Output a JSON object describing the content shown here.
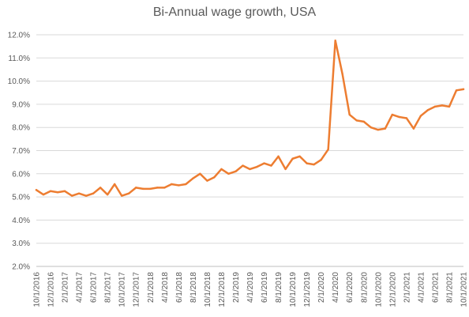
{
  "chart_data": {
    "type": "line",
    "title": "Bi-Annual wage growth, USA",
    "xlabel": "",
    "ylabel": "",
    "ylim": [
      2.0,
      12.0
    ],
    "y_tick_step": 1.0,
    "y_tick_labels": [
      "2.0%",
      "3.0%",
      "4.0%",
      "5.0%",
      "6.0%",
      "7.0%",
      "8.0%",
      "9.0%",
      "10.0%",
      "11.0%",
      "12.0%"
    ],
    "x_tick_labels": [
      "10/1/2016",
      "12/1/2016",
      "2/1/2017",
      "4/1/2017",
      "6/1/2017",
      "8/1/2017",
      "10/1/2017",
      "12/1/2017",
      "2/1/2018",
      "4/1/2018",
      "6/1/2018",
      "8/1/2018",
      "10/1/2018",
      "12/1/2018",
      "2/1/2019",
      "4/1/2019",
      "6/1/2019",
      "8/1/2019",
      "10/1/2019",
      "12/1/2019",
      "2/1/2020",
      "4/1/2020",
      "6/1/2020",
      "8/1/2020",
      "10/1/2020",
      "12/1/2020",
      "2/1/2021",
      "4/1/2021",
      "6/1/2021",
      "8/1/2021",
      "10/1/2021"
    ],
    "grid": true,
    "legend": "none",
    "color": "#ED7D31",
    "x": [
      "10/1/2016",
      "11/1/2016",
      "12/1/2016",
      "1/1/2017",
      "2/1/2017",
      "3/1/2017",
      "4/1/2017",
      "5/1/2017",
      "6/1/2017",
      "7/1/2017",
      "8/1/2017",
      "9/1/2017",
      "10/1/2017",
      "11/1/2017",
      "12/1/2017",
      "1/1/2018",
      "2/1/2018",
      "3/1/2018",
      "4/1/2018",
      "5/1/2018",
      "6/1/2018",
      "7/1/2018",
      "8/1/2018",
      "9/1/2018",
      "10/1/2018",
      "11/1/2018",
      "12/1/2018",
      "1/1/2019",
      "2/1/2019",
      "3/1/2019",
      "4/1/2019",
      "5/1/2019",
      "6/1/2019",
      "7/1/2019",
      "8/1/2019",
      "9/1/2019",
      "10/1/2019",
      "11/1/2019",
      "12/1/2019",
      "1/1/2020",
      "2/1/2020",
      "3/1/2020",
      "4/1/2020",
      "5/1/2020",
      "6/1/2020",
      "7/1/2020",
      "8/1/2020",
      "9/1/2020",
      "10/1/2020",
      "11/1/2020",
      "12/1/2020",
      "1/1/2021",
      "2/1/2021",
      "3/1/2021",
      "4/1/2021",
      "5/1/2021",
      "6/1/2021",
      "7/1/2021",
      "8/1/2021",
      "9/1/2021",
      "10/1/2021"
    ],
    "values": [
      5.3,
      5.1,
      5.25,
      5.2,
      5.25,
      5.05,
      5.15,
      5.05,
      5.15,
      5.4,
      5.1,
      5.55,
      5.05,
      5.15,
      5.4,
      5.35,
      5.35,
      5.4,
      5.4,
      5.55,
      5.5,
      5.55,
      5.8,
      6.0,
      5.7,
      5.85,
      6.2,
      6.0,
      6.1,
      6.35,
      6.2,
      6.3,
      6.45,
      6.35,
      6.75,
      6.2,
      6.65,
      6.75,
      6.45,
      6.4,
      6.6,
      7.05,
      11.75,
      10.3,
      8.55,
      8.3,
      8.25,
      8.0,
      7.9,
      7.95,
      8.55,
      8.45,
      8.4,
      7.95,
      8.5,
      8.75,
      8.9,
      8.95,
      8.9,
      9.6,
      9.65
    ]
  }
}
